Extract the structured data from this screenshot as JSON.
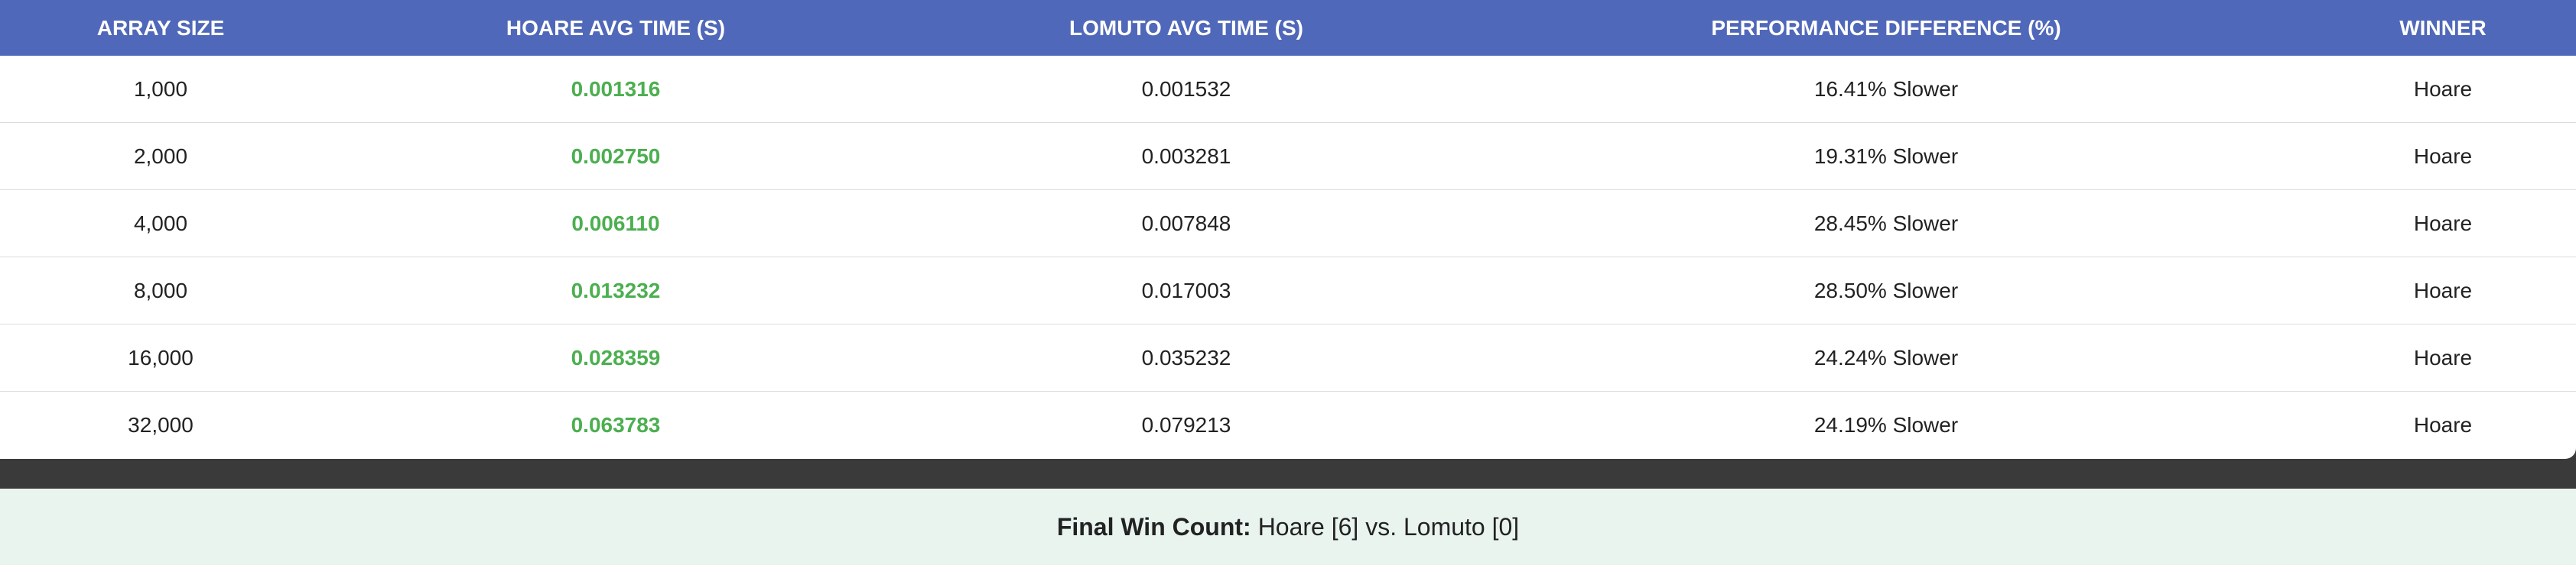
{
  "table": {
    "header": [
      "ARRAY SIZE",
      "HOARE AVG TIME (S)",
      "LOMUTO AVG TIME (S)",
      "PERFORMANCE DIFFERENCE (%)",
      "WINNER"
    ],
    "rows": [
      [
        "1,000",
        "0.001316",
        "0.001532",
        "16.41% Slower",
        "Hoare"
      ],
      [
        "2,000",
        "0.002750",
        "0.003281",
        "19.31% Slower",
        "Hoare"
      ],
      [
        "4,000",
        "0.006110",
        "0.007848",
        "28.45% Slower",
        "Hoare"
      ],
      [
        "8,000",
        "0.013232",
        "0.017003",
        "28.50% Slower",
        "Hoare"
      ],
      [
        "16,000",
        "0.028359",
        "0.035232",
        "24.24% Slower",
        "Hoare"
      ],
      [
        "32,000",
        "0.063783",
        "0.079213",
        "24.19% Slower",
        "Hoare"
      ]
    ]
  },
  "footer": {
    "label": "Final Win Count:",
    "text": "Hoare [6] vs. Lomuto [0]"
  }
}
